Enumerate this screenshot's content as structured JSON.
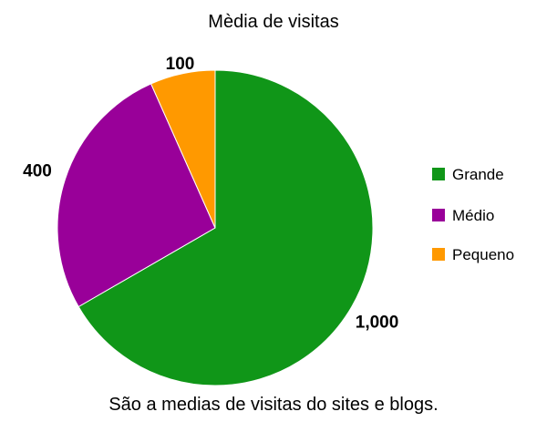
{
  "chart_data": {
    "type": "pie",
    "title": "Mèdia de visitas",
    "caption": "São a medias de visitas do sites e blogs.",
    "categories": [
      "Grande",
      "Médio",
      "Pequeno"
    ],
    "values": [
      1000,
      400,
      100
    ],
    "value_labels": [
      "1,000",
      "400",
      "100"
    ],
    "colors": [
      "#109618",
      "#990099",
      "#ff9900"
    ],
    "legend_position": "right",
    "start_angle": "top, clockwise"
  }
}
